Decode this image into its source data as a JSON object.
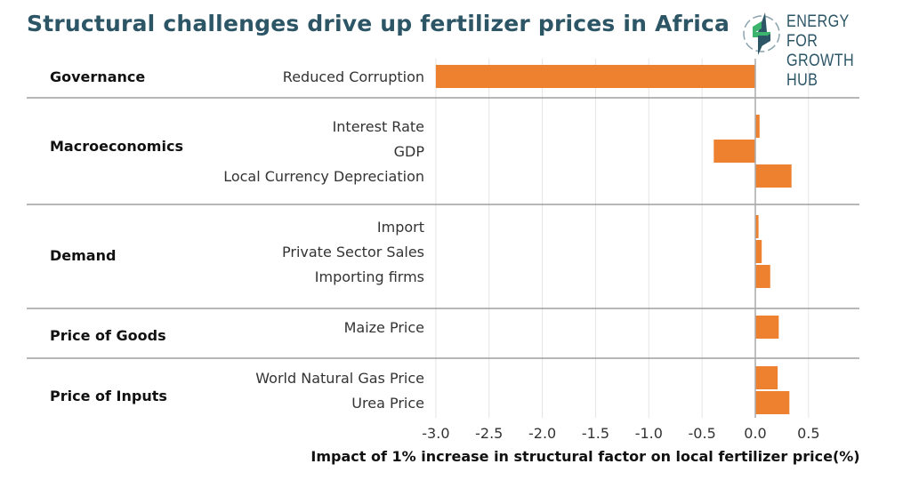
{
  "header": {
    "title": "Structural challenges drive up fertilizer prices in Africa",
    "logo_line1": "ENERGY FOR",
    "logo_line2": "GROWTH HUB",
    "colors": {
      "title": "#2c5566",
      "bar": "#ee8130",
      "logo_green": "#3db46d",
      "logo_navy": "#2c5566"
    }
  },
  "chart_data": {
    "type": "bar",
    "orientation": "horizontal",
    "title": "Structural challenges drive up fertilizer prices in Africa",
    "xlabel": "Impact of 1% increase in structural factor on local fertilizer price(%)",
    "ylabel": "",
    "xlim": [
      -3.0,
      0.8
    ],
    "xticks": [
      -3.0,
      -2.5,
      -2.0,
      -1.5,
      -1.0,
      -0.5,
      0.0,
      0.5
    ],
    "xtick_labels": [
      "-3.0",
      "-2.5",
      "-2.0",
      "-1.5",
      "-1.0",
      "-0.5",
      "0.0",
      "0.5"
    ],
    "grid": "vertical",
    "groups": [
      {
        "name": "Governance",
        "items": [
          {
            "label": "Reduced Corruption",
            "value": -3.0
          }
        ]
      },
      {
        "name": "Macroeconomics",
        "items": [
          {
            "label": "Interest Rate",
            "value": 0.04
          },
          {
            "label": "GDP",
            "value": -0.39
          },
          {
            "label": "Local Currency Depreciation",
            "value": 0.34
          }
        ]
      },
      {
        "name": "Demand",
        "items": [
          {
            "label": "Import",
            "value": 0.03
          },
          {
            "label": "Private Sector Sales",
            "value": 0.06
          },
          {
            "label": "Importing firms",
            "value": 0.14
          }
        ]
      },
      {
        "name": "Price of Goods",
        "items": [
          {
            "label": "Maize Price",
            "value": 0.22
          }
        ]
      },
      {
        "name": "Price of Inputs",
        "items": [
          {
            "label": "World Natural Gas Price",
            "value": 0.21
          },
          {
            "label": "Urea Price",
            "value": 0.32
          }
        ]
      }
    ]
  }
}
